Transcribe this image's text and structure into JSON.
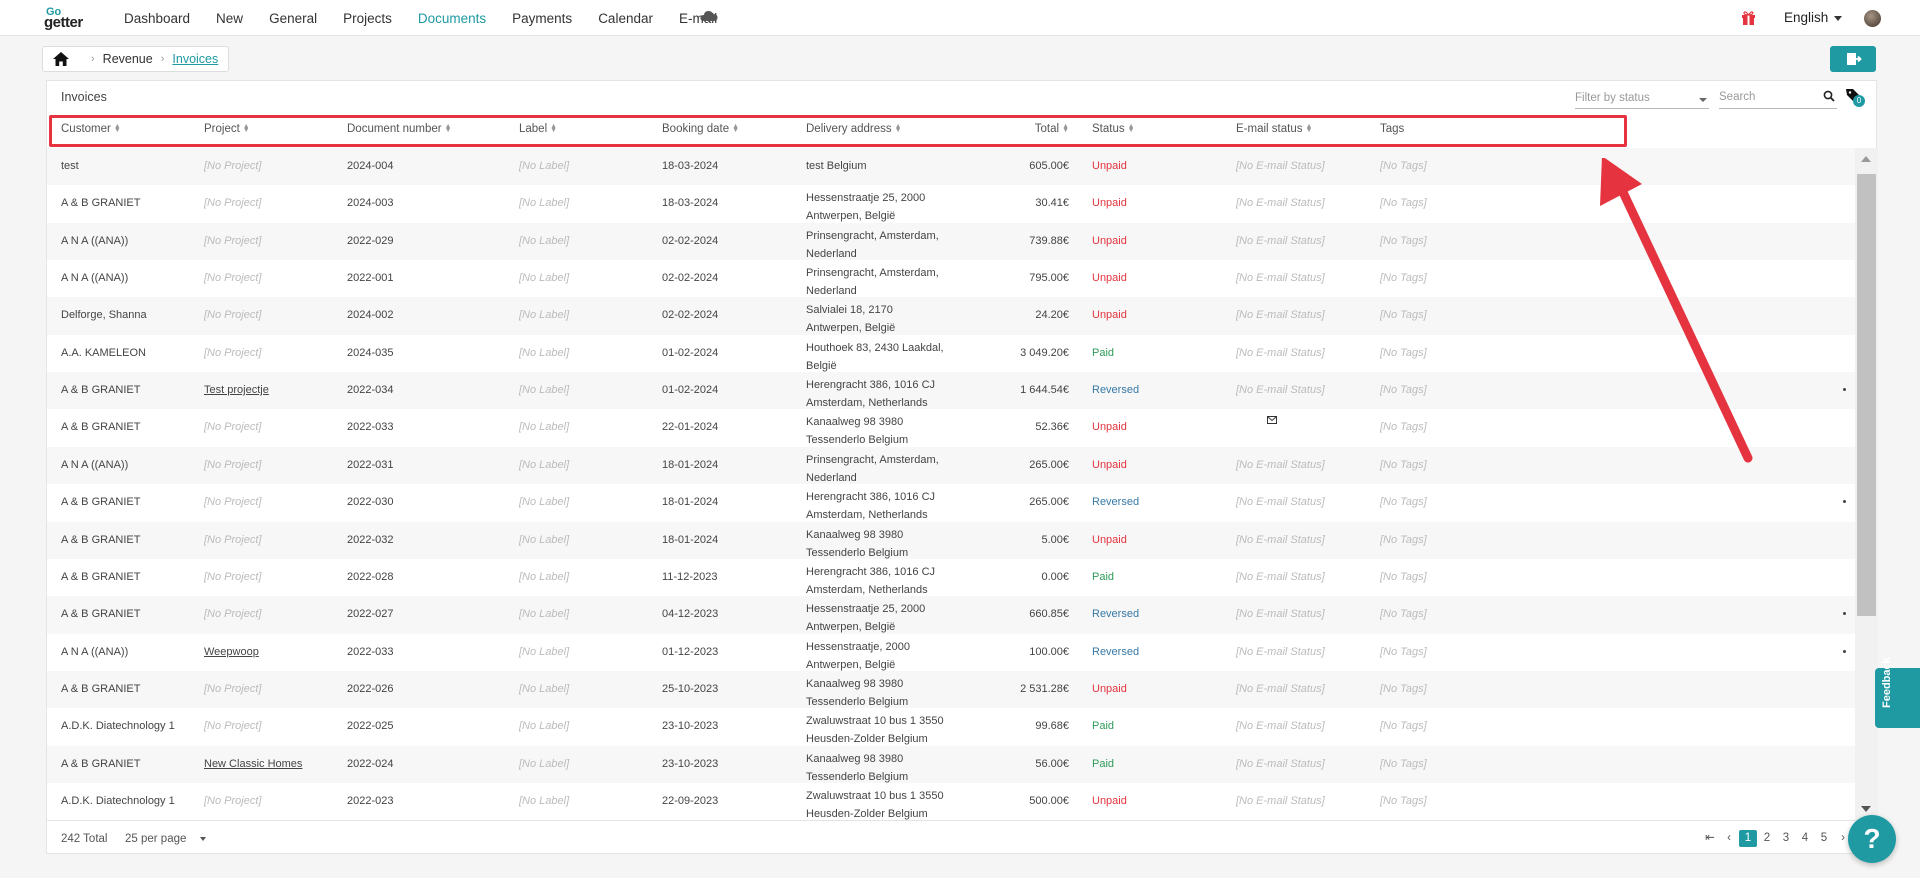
{
  "nav": {
    "logo_top": "Go",
    "logo_bottom": "getter",
    "items": [
      "Dashboard",
      "New",
      "General",
      "Projects",
      "Documents",
      "Payments",
      "Calendar",
      "E-mail"
    ],
    "active_index": 4,
    "language": "English"
  },
  "breadcrumb": {
    "items": [
      "Revenue",
      "Invoices"
    ]
  },
  "panel": {
    "title": "Invoices",
    "filter_placeholder": "Filter by status",
    "search_placeholder": "Search",
    "tag_count": "0"
  },
  "table": {
    "columns": [
      "Customer",
      "Project",
      "Document number",
      "Label",
      "Booking date",
      "Delivery address",
      "Total",
      "Status",
      "E-mail status",
      "Tags"
    ],
    "rows": [
      {
        "customer": "test",
        "project": "[No Project]",
        "doc": "2024-004",
        "label": "[No Label]",
        "date": "18-03-2024",
        "addr1": "test Belgium",
        "addr2": "",
        "total": "605.00€",
        "status": "Unpaid",
        "email": "[No E-mail Status]",
        "tags": "[No Tags]"
      },
      {
        "customer": "A & B GRANIET",
        "project": "[No Project]",
        "doc": "2024-003",
        "label": "[No Label]",
        "date": "18-03-2024",
        "addr1": "Hessenstraatje 25, 2000",
        "addr2": "Antwerpen, België",
        "total": "30.41€",
        "status": "Unpaid",
        "email": "[No E-mail Status]",
        "tags": "[No Tags]"
      },
      {
        "customer": "A N A ((ANA))",
        "project": "[No Project]",
        "doc": "2022-029",
        "label": "[No Label]",
        "date": "02-02-2024",
        "addr1": "Prinsengracht, Amsterdam,",
        "addr2": "Nederland",
        "total": "739.88€",
        "status": "Unpaid",
        "email": "[No E-mail Status]",
        "tags": "[No Tags]"
      },
      {
        "customer": "A N A ((ANA))",
        "project": "[No Project]",
        "doc": "2022-001",
        "label": "[No Label]",
        "date": "02-02-2024",
        "addr1": "Prinsengracht, Amsterdam,",
        "addr2": "Nederland",
        "total": "795.00€",
        "status": "Unpaid",
        "email": "[No E-mail Status]",
        "tags": "[No Tags]"
      },
      {
        "customer": "Delforge, Shanna",
        "project": "[No Project]",
        "doc": "2024-002",
        "label": "[No Label]",
        "date": "02-02-2024",
        "addr1": "Salvialei 18, 2170",
        "addr2": "Antwerpen, België",
        "total": "24.20€",
        "status": "Unpaid",
        "email": "[No E-mail Status]",
        "tags": "[No Tags]"
      },
      {
        "customer": "A.A. KAMELEON",
        "project": "[No Project]",
        "doc": "2024-035",
        "label": "[No Label]",
        "date": "01-02-2024",
        "addr1": "Houthoek 83, 2430 Laakdal,",
        "addr2": "België",
        "total": "3 049.20€",
        "status": "Paid",
        "email": "[No E-mail Status]",
        "tags": "[No Tags]"
      },
      {
        "customer": "A & B GRANIET",
        "project": "Test projectje",
        "doc": "2022-034",
        "label": "[No Label]",
        "date": "01-02-2024",
        "addr1": "Herengracht 386, 1016 CJ",
        "addr2": "Amsterdam, Netherlands",
        "total": "1 644.54€",
        "status": "Reversed",
        "email": "[No E-mail Status]",
        "tags": "[No Tags]"
      },
      {
        "customer": "A & B GRANIET",
        "project": "[No Project]",
        "doc": "2022-033",
        "label": "[No Label]",
        "date": "22-01-2024",
        "addr1": "Kanaalweg 98 3980",
        "addr2": "Tessenderlo Belgium",
        "total": "52.36€",
        "status": "Unpaid",
        "email": "",
        "tags": "[No Tags]"
      },
      {
        "customer": "A N A ((ANA))",
        "project": "[No Project]",
        "doc": "2022-031",
        "label": "[No Label]",
        "date": "18-01-2024",
        "addr1": "Prinsengracht, Amsterdam,",
        "addr2": "Nederland",
        "total": "265.00€",
        "status": "Unpaid",
        "email": "[No E-mail Status]",
        "tags": "[No Tags]"
      },
      {
        "customer": "A & B GRANIET",
        "project": "[No Project]",
        "doc": "2022-030",
        "label": "[No Label]",
        "date": "18-01-2024",
        "addr1": "Herengracht 386, 1016 CJ",
        "addr2": "Amsterdam, Netherlands",
        "total": "265.00€",
        "status": "Reversed",
        "email": "[No E-mail Status]",
        "tags": "[No Tags]"
      },
      {
        "customer": "A & B GRANIET",
        "project": "[No Project]",
        "doc": "2022-032",
        "label": "[No Label]",
        "date": "18-01-2024",
        "addr1": "Kanaalweg 98 3980",
        "addr2": "Tessenderlo Belgium",
        "total": "5.00€",
        "status": "Unpaid",
        "email": "[No E-mail Status]",
        "tags": "[No Tags]"
      },
      {
        "customer": "A & B GRANIET",
        "project": "[No Project]",
        "doc": "2022-028",
        "label": "[No Label]",
        "date": "11-12-2023",
        "addr1": "Herengracht 386, 1016 CJ",
        "addr2": "Amsterdam, Netherlands",
        "total": "0.00€",
        "status": "Paid",
        "email": "[No E-mail Status]",
        "tags": "[No Tags]"
      },
      {
        "customer": "A & B GRANIET",
        "project": "[No Project]",
        "doc": "2022-027",
        "label": "[No Label]",
        "date": "04-12-2023",
        "addr1": "Hessenstraatje 25, 2000",
        "addr2": "Antwerpen, België",
        "total": "660.85€",
        "status": "Reversed",
        "email": "[No E-mail Status]",
        "tags": "[No Tags]"
      },
      {
        "customer": "A N A ((ANA))",
        "project": "Weepwoop",
        "doc": "2022-033",
        "label": "[No Label]",
        "date": "01-12-2023",
        "addr1": "Hessenstraatje, 2000",
        "addr2": "Antwerpen, België",
        "total": "100.00€",
        "status": "Reversed",
        "email": "[No E-mail Status]",
        "tags": "[No Tags]"
      },
      {
        "customer": "A & B GRANIET",
        "project": "[No Project]",
        "doc": "2022-026",
        "label": "[No Label]",
        "date": "25-10-2023",
        "addr1": "Kanaalweg 98 3980",
        "addr2": "Tessenderlo Belgium",
        "total": "2 531.28€",
        "status": "Unpaid",
        "email": "[No E-mail Status]",
        "tags": "[No Tags]"
      },
      {
        "customer": "A.D.K. Diatechnology 1",
        "project": "[No Project]",
        "doc": "2022-025",
        "label": "[No Label]",
        "date": "23-10-2023",
        "addr1": "Zwaluwstraat 10 bus 1 3550",
        "addr2": "Heusden-Zolder Belgium",
        "total": "99.68€",
        "status": "Paid",
        "email": "[No E-mail Status]",
        "tags": "[No Tags]"
      },
      {
        "customer": "A & B GRANIET",
        "project": "New Classic Homes",
        "doc": "2022-024",
        "label": "[No Label]",
        "date": "23-10-2023",
        "addr1": "Kanaalweg 98 3980",
        "addr2": "Tessenderlo Belgium",
        "total": "56.00€",
        "status": "Paid",
        "email": "[No E-mail Status]",
        "tags": "[No Tags]"
      },
      {
        "customer": "A.D.K. Diatechnology 1",
        "project": "[No Project]",
        "doc": "2022-023",
        "label": "[No Label]",
        "date": "22-09-2023",
        "addr1": "Zwaluwstraat 10 bus 1 3550",
        "addr2": "Heusden-Zolder Belgium",
        "total": "500.00€",
        "status": "Unpaid",
        "email": "[No E-mail Status]",
        "tags": "[No Tags]"
      }
    ]
  },
  "footer": {
    "total": "242 Total",
    "per_page": "25 per page",
    "pages": [
      "1",
      "2",
      "3",
      "4",
      "5"
    ],
    "active_page": "1"
  },
  "feedback_label": "Feedback",
  "help_label": "?",
  "colors": {
    "accent": "#1f9aa3",
    "unpaid": "#e5343f",
    "paid": "#2d9b5a",
    "reversed": "#3778a6",
    "highlight": "#e5343f"
  },
  "icons": [
    "home-icon",
    "cloud-icon",
    "gift-icon",
    "search-icon",
    "tag-icon",
    "mail-icon",
    "export-icon"
  ]
}
